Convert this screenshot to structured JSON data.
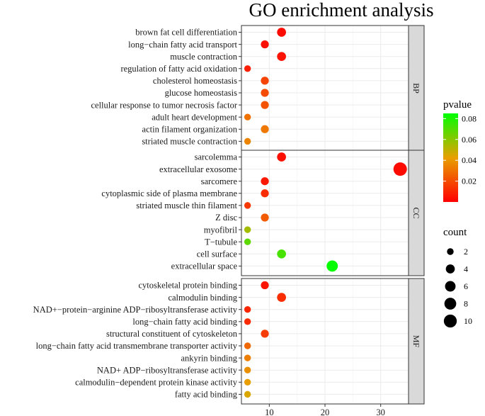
{
  "chart_data": {
    "type": "scatter",
    "title": "GO enrichment analysis",
    "xlabel": "",
    "ylabel": "",
    "xlim": [
      5,
      35
    ],
    "xticks": [
      10,
      20,
      30
    ],
    "color_scale": {
      "label": "pvalue",
      "range": [
        0,
        0.085
      ],
      "ticks": [
        0.02,
        0.04,
        0.06,
        0.08
      ],
      "tick_labels": [
        "0.02",
        "0.04",
        "0.06",
        "0.08"
      ],
      "low_color": "#ff0000",
      "high_color": "#00ff00"
    },
    "size_scale": {
      "label": "count",
      "values": [
        2,
        4,
        6,
        8,
        10
      ],
      "labels": [
        "2",
        "4",
        "6",
        "8",
        "10"
      ]
    },
    "panels": [
      {
        "name": "BP",
        "terms": [
          {
            "label": "brown fat cell differentiation",
            "x": 12.2,
            "count": 4,
            "pvalue": 0.003
          },
          {
            "label": "long−chain fatty acid transport",
            "x": 9.2,
            "count": 3,
            "pvalue": 0.004
          },
          {
            "label": "muscle contraction",
            "x": 12.2,
            "count": 4,
            "pvalue": 0.005
          },
          {
            "label": "regulation of fatty acid oxidation",
            "x": 6.1,
            "count": 2,
            "pvalue": 0.008
          },
          {
            "label": "cholesterol homeostasis",
            "x": 9.2,
            "count": 3,
            "pvalue": 0.018
          },
          {
            "label": "glucose homeostasis",
            "x": 9.2,
            "count": 3,
            "pvalue": 0.02
          },
          {
            "label": "cellular response to tumor necrosis factor",
            "x": 9.2,
            "count": 3,
            "pvalue": 0.022
          },
          {
            "label": "adult heart development",
            "x": 6.1,
            "count": 2,
            "pvalue": 0.03
          },
          {
            "label": "actin filament organization",
            "x": 9.2,
            "count": 3,
            "pvalue": 0.032
          },
          {
            "label": "striated muscle contraction",
            "x": 6.1,
            "count": 2,
            "pvalue": 0.035
          }
        ]
      },
      {
        "name": "CC",
        "terms": [
          {
            "label": "sarcolemma",
            "x": 12.2,
            "count": 4,
            "pvalue": 0.004
          },
          {
            "label": "extracellular exosome",
            "x": 33.5,
            "count": 11,
            "pvalue": 0.003
          },
          {
            "label": "sarcomere",
            "x": 9.2,
            "count": 3,
            "pvalue": 0.006
          },
          {
            "label": "cytoplasmic side of plasma membrane",
            "x": 9.2,
            "count": 3,
            "pvalue": 0.012
          },
          {
            "label": "striated muscle thin filament",
            "x": 6.1,
            "count": 2,
            "pvalue": 0.015
          },
          {
            "label": "Z disc",
            "x": 9.2,
            "count": 3,
            "pvalue": 0.024
          },
          {
            "label": "myofibril",
            "x": 6.1,
            "count": 2,
            "pvalue": 0.055
          },
          {
            "label": "T−tubule",
            "x": 6.1,
            "count": 2,
            "pvalue": 0.068
          },
          {
            "label": "cell surface",
            "x": 12.2,
            "count": 4,
            "pvalue": 0.072
          },
          {
            "label": "extracellular space",
            "x": 21.3,
            "count": 7,
            "pvalue": 0.084
          }
        ]
      },
      {
        "name": "MF",
        "terms": [
          {
            "label": "cytoskeletal protein binding",
            "x": 9.2,
            "count": 3,
            "pvalue": 0.005
          },
          {
            "label": "calmodulin binding",
            "x": 12.2,
            "count": 4,
            "pvalue": 0.012
          },
          {
            "label": "NAD+−protein−arginine ADP−ribosyltransferase activity",
            "x": 6.1,
            "count": 2,
            "pvalue": 0.01
          },
          {
            "label": "long−chain fatty acid binding",
            "x": 6.1,
            "count": 2,
            "pvalue": 0.011
          },
          {
            "label": "structural constituent of cytoskeleton",
            "x": 9.2,
            "count": 3,
            "pvalue": 0.016
          },
          {
            "label": "long−chain fatty acid transmembrane transporter activity",
            "x": 6.1,
            "count": 2,
            "pvalue": 0.028
          },
          {
            "label": "ankyrin binding",
            "x": 6.1,
            "count": 2,
            "pvalue": 0.034
          },
          {
            "label": "NAD+ ADP−ribosyltransferase activity",
            "x": 6.1,
            "count": 2,
            "pvalue": 0.038
          },
          {
            "label": "calmodulin−dependent protein kinase activity",
            "x": 6.1,
            "count": 2,
            "pvalue": 0.042
          },
          {
            "label": "fatty acid binding",
            "x": 6.1,
            "count": 2,
            "pvalue": 0.045
          }
        ]
      }
    ]
  }
}
